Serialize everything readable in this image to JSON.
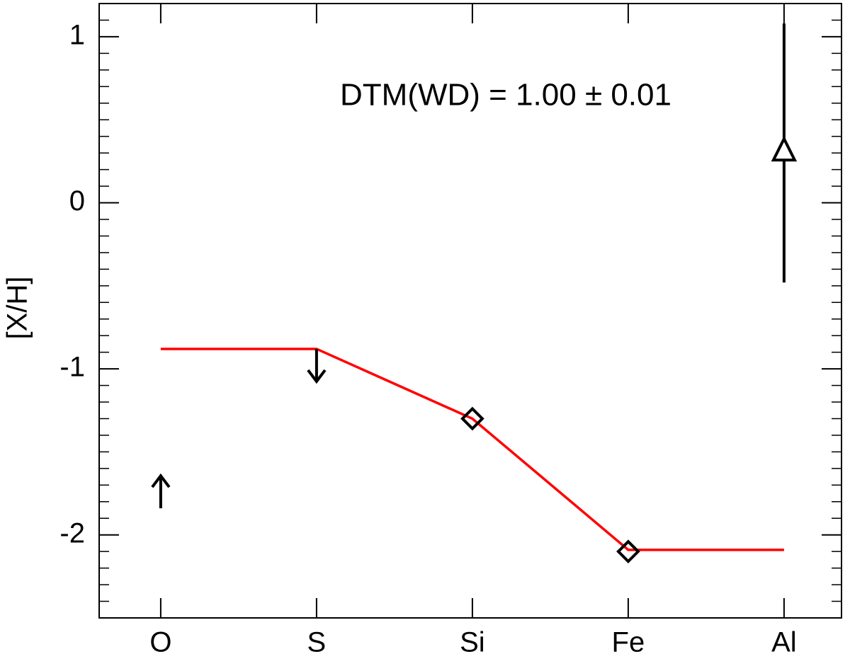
{
  "chart_data": {
    "type": "line",
    "ylabel": "[X/H]",
    "annotation": "DTM(WD) = 1.00 ± 0.01",
    "categories": [
      "O",
      "S",
      "Si",
      "Fe",
      "Al"
    ],
    "ylim": [
      -2.5,
      1.2
    ],
    "yticks": [
      -2,
      -1,
      0,
      1
    ],
    "yminor_step": 0.1,
    "series": [
      {
        "color": "#ff0000",
        "values": [
          -0.88,
          -0.88,
          -1.3,
          -2.09,
          -2.09
        ]
      },
      {
        "color": "#000000",
        "values": [
          -1.84,
          -0.88,
          -1.3,
          -2.1,
          0.3
        ],
        "errors": [
          null,
          null,
          null,
          null,
          0.78
        ],
        "markers": [
          "up-arrow",
          "down-arrow",
          "diamond",
          "diamond",
          "triangle"
        ]
      }
    ]
  }
}
